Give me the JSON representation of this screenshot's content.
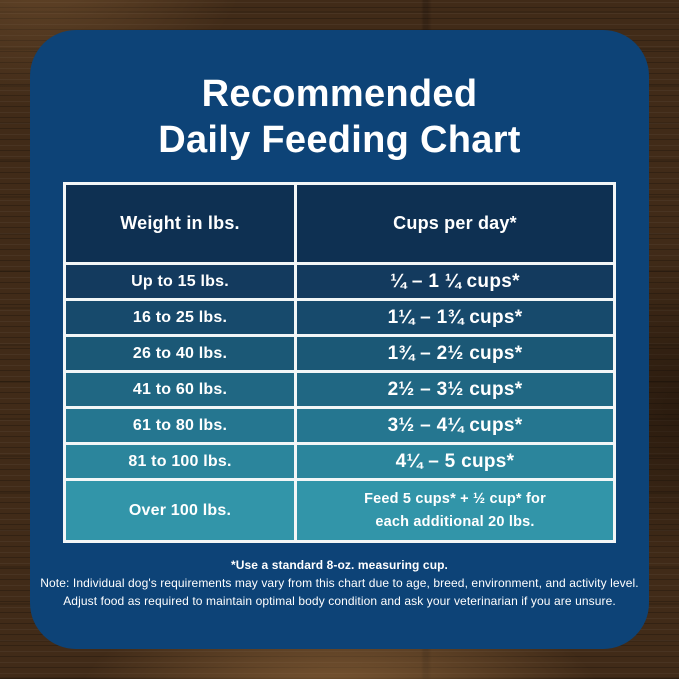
{
  "page": {
    "title_line1": "Recommended",
    "title_line2": "Daily Feeding Chart"
  },
  "chart_data": {
    "type": "table",
    "title": "Recommended Daily Feeding Chart",
    "columns": [
      "Weight in lbs.",
      "Cups per day*"
    ],
    "rows": [
      [
        "Up to 15 lbs.",
        "¼ – 1 ¼ cups*"
      ],
      [
        "16 to 25 lbs.",
        "1¼ – 1¾ cups*"
      ],
      [
        "26 to 40 lbs.",
        "1¾ – 2½ cups*"
      ],
      [
        "41 to 60 lbs.",
        "2½ – 3½ cups*"
      ],
      [
        "61 to 80 lbs.",
        "3½ – 4¼ cups*"
      ],
      [
        "81 to 100 lbs.",
        "4¼ – 5 cups*"
      ],
      [
        "Over 100 lbs.",
        "Feed 5 cups* + ½ cup* for\neach additional 20 lbs."
      ]
    ],
    "footnotes": [
      "*Use a standard 8-oz. measuring cup.",
      "Note: Individual dog's requirements may vary from this chart due to age, breed, environment, and activity level.",
      "Adjust food as required to maintain optimal body condition and ask your veterinarian if you are unsure."
    ],
    "layout_hints": {
      "row_order": "light-to-dark gradient top dark navy to bottom teal",
      "grid": true
    }
  },
  "colors": {
    "card_background": "#0d4377",
    "header_cell_background": "#0e3052",
    "table_border": "#f2f6f7",
    "text_color": "#ffffff",
    "wood_base": "#412b18",
    "row_backgrounds": [
      "#133a5e",
      "#174a6c",
      "#1b5876",
      "#206783",
      "#257690",
      "#2b859c",
      "#3295a9"
    ]
  }
}
